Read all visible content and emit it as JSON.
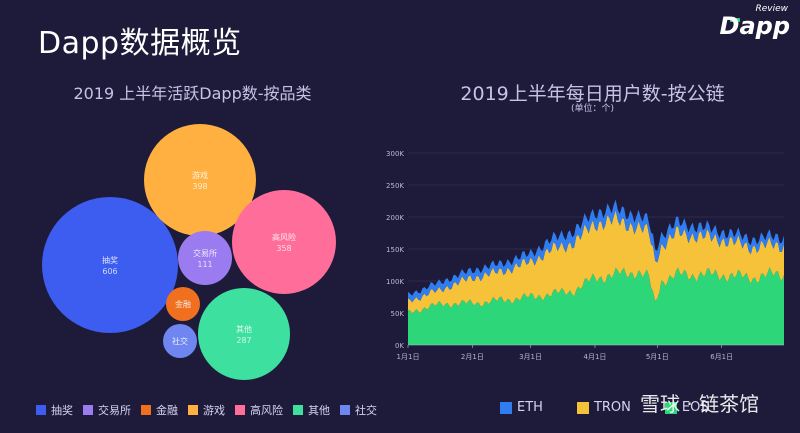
{
  "page_title": "Dapp数据概览",
  "logo": {
    "review": "Review",
    "dapp": "Dapp"
  },
  "watermark": {
    "left": "雪球 · 链茶馆",
    "brand": "链茶馆"
  },
  "colors": {
    "lottery": "#3d5cf0",
    "exchange": "#9b7bf0",
    "finance": "#f07020",
    "games": "#ffb040",
    "high_risk": "#ff6e9a",
    "other": "#3ee0a0",
    "social": "#6f86f0",
    "eth": "#2f7df0",
    "tron": "#f5c23a",
    "eos": "#2ed67a"
  },
  "chart_data": [
    {
      "type": "bubble",
      "title": "2019 上半年活跃Dapp数-按品类",
      "bubbles": [
        {
          "name": "抽奖",
          "value": 606,
          "color_key": "lottery"
        },
        {
          "name": "游戏",
          "value": 398,
          "color_key": "games"
        },
        {
          "name": "高风险",
          "value": 358,
          "color_key": "high_risk"
        },
        {
          "name": "其他",
          "value": 287,
          "color_key": "other"
        },
        {
          "name": "交易所",
          "value": 111,
          "color_key": "exchange"
        },
        {
          "name": "金融",
          "value": null,
          "color_key": "finance"
        },
        {
          "name": "社交",
          "value": null,
          "color_key": "social"
        }
      ],
      "legend": [
        "抽奖",
        "交易所",
        "金融",
        "游戏",
        "高风险",
        "其他",
        "社交"
      ],
      "legend_placement": "bottom"
    },
    {
      "type": "area",
      "stacked": true,
      "title": "2019上半年每日用户数-按公链",
      "subtitle": "(单位：个)",
      "y_ticks": [
        "0K",
        "50K",
        "100K",
        "150K",
        "200K",
        "250K",
        "300K"
      ],
      "ylim": [
        0,
        300000
      ],
      "x_ticks": [
        "1月1日",
        "2月1日",
        "3月1日",
        "4月1日",
        "5月1日",
        "6月1日"
      ],
      "x_tick_days": [
        0,
        31,
        59,
        90,
        120,
        151
      ],
      "x_range_days": [
        0,
        181
      ],
      "grid": true,
      "legend_placement": "bottom",
      "series": [
        {
          "name": "ETH",
          "color_key": "eth",
          "anchors": [
            [
              0,
              10000
            ],
            [
              15,
              12000
            ],
            [
              31,
              12000
            ],
            [
              59,
              13000
            ],
            [
              75,
              18000
            ],
            [
              90,
              18000
            ],
            [
              100,
              18000
            ],
            [
              120,
              18000
            ],
            [
              140,
              15000
            ],
            [
              151,
              13000
            ],
            [
              181,
              13000
            ]
          ]
        },
        {
          "name": "TRON",
          "color_key": "tron",
          "anchors": [
            [
              0,
              18000
            ],
            [
              15,
              22000
            ],
            [
              31,
              40000
            ],
            [
              45,
              45000
            ],
            [
              59,
              55000
            ],
            [
              70,
              70000
            ],
            [
              80,
              75000
            ],
            [
              90,
              85000
            ],
            [
              100,
              85000
            ],
            [
              110,
              70000
            ],
            [
              118,
              70000
            ],
            [
              122,
              55000
            ],
            [
              130,
              65000
            ],
            [
              140,
              60000
            ],
            [
              151,
              55000
            ],
            [
              165,
              48000
            ],
            [
              181,
              45000
            ]
          ]
        },
        {
          "name": "EOS",
          "color_key": "eos",
          "anchors": [
            [
              0,
              50000
            ],
            [
              10,
              60000
            ],
            [
              20,
              65000
            ],
            [
              31,
              65000
            ],
            [
              45,
              70000
            ],
            [
              59,
              75000
            ],
            [
              70,
              80000
            ],
            [
              80,
              85000
            ],
            [
              90,
              105000
            ],
            [
              100,
              110000
            ],
            [
              110,
              115000
            ],
            [
              116,
              105000
            ],
            [
              119,
              65000
            ],
            [
              122,
              100000
            ],
            [
              130,
              110000
            ],
            [
              140,
              110000
            ],
            [
              151,
              110000
            ],
            [
              165,
              105000
            ],
            [
              175,
              110000
            ],
            [
              181,
              110000
            ]
          ]
        }
      ]
    }
  ]
}
